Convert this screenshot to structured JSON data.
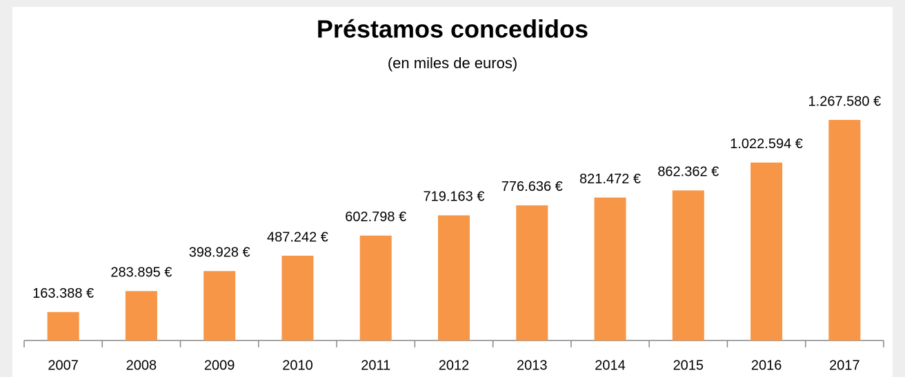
{
  "chart_data": {
    "type": "bar",
    "title": "Préstamos concedidos",
    "subtitle": "(en miles de euros)",
    "categories": [
      "2007",
      "2008",
      "2009",
      "2010",
      "2011",
      "2012",
      "2013",
      "2014",
      "2015",
      "2016",
      "2017"
    ],
    "values": [
      163388,
      283895,
      398928,
      487242,
      602798,
      719163,
      776636,
      821472,
      862362,
      1022594,
      1267580
    ],
    "value_labels": [
      "163.388 €",
      "283.895 €",
      "398.928 €",
      "487.242 €",
      "602.798 €",
      "719.163 €",
      "776.636 €",
      "821.472 €",
      "862.362 €",
      "1.022.594 €",
      "1.267.580 €"
    ],
    "color": "#f79646"
  }
}
